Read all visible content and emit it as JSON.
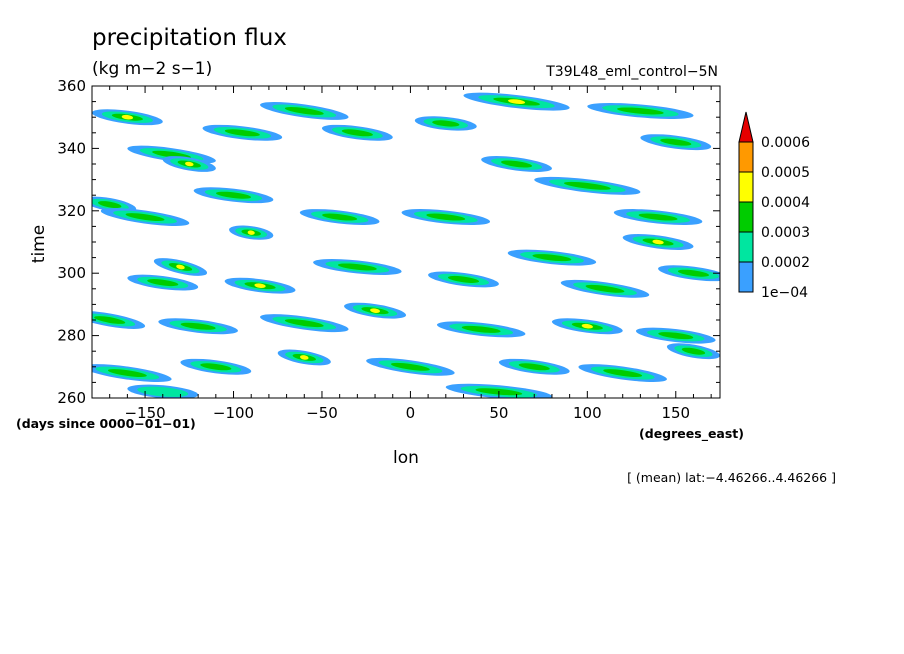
{
  "chart_data": {
    "type": "heatmap",
    "title": "precipitation flux",
    "units": "(kg m−2 s−1)",
    "experiment": "T39L48_eml_control−5N",
    "xlabel": "lon",
    "x_units": "(degrees_east)",
    "ylabel": "time",
    "y_units": "(days since 0000−01−01)",
    "note": "[ (mean) lat:−4.46266..4.46266 ]",
    "xlim": [
      -180,
      175
    ],
    "ylim": [
      260,
      360
    ],
    "x_ticks": [
      -150,
      -100,
      -50,
      0,
      50,
      100,
      150
    ],
    "x_tick_labels": [
      "−150",
      "−100",
      "−50",
      "0",
      "50",
      "100",
      "150"
    ],
    "y_ticks": [
      260,
      280,
      300,
      320,
      340,
      360
    ],
    "y_tick_labels": [
      "260",
      "280",
      "300",
      "320",
      "340",
      "360"
    ],
    "colorbar": {
      "levels": [
        0.0001,
        0.0002,
        0.0003,
        0.0004,
        0.0005,
        0.0006
      ],
      "level_labels": [
        "1e−04",
        "0.0002",
        "0.0003",
        "0.0004",
        "0.0005",
        "0.0006"
      ],
      "colors": [
        "#3aa0ff",
        "#00e6a0",
        "#00cc00",
        "#ffff00",
        "#ff9900",
        "#e60000"
      ]
    },
    "bands_description": "eastward-propagating streaks running from lower-left to upper-right",
    "bands": [
      {
        "lon": -160,
        "t": 350,
        "dlon": 40,
        "dt": -3,
        "peak": 3
      },
      {
        "lon": -135,
        "t": 338,
        "dlon": 50,
        "dt": -4,
        "peak": 2
      },
      {
        "lon": -125,
        "t": 335,
        "dlon": 30,
        "dt": -3,
        "peak": 4
      },
      {
        "lon": -95,
        "t": 345,
        "dlon": 45,
        "dt": -3,
        "peak": 2
      },
      {
        "lon": -60,
        "t": 352,
        "dlon": 50,
        "dt": -4,
        "peak": 2
      },
      {
        "lon": -30,
        "t": 345,
        "dlon": 40,
        "dt": -3,
        "peak": 2
      },
      {
        "lon": 20,
        "t": 348,
        "dlon": 35,
        "dt": -2,
        "peak": 2
      },
      {
        "lon": 60,
        "t": 355,
        "dlon": 60,
        "dt": -4,
        "peak": 3
      },
      {
        "lon": 130,
        "t": 352,
        "dlon": 60,
        "dt": -3,
        "peak": 2
      },
      {
        "lon": 150,
        "t": 342,
        "dlon": 40,
        "dt": -3,
        "peak": 2
      },
      {
        "lon": -170,
        "t": 322,
        "dlon": 30,
        "dt": -3,
        "peak": 2
      },
      {
        "lon": -150,
        "t": 318,
        "dlon": 50,
        "dt": -4,
        "peak": 2
      },
      {
        "lon": -100,
        "t": 325,
        "dlon": 45,
        "dt": -3,
        "peak": 2
      },
      {
        "lon": -90,
        "t": 313,
        "dlon": 25,
        "dt": -2,
        "peak": 4
      },
      {
        "lon": -40,
        "t": 318,
        "dlon": 45,
        "dt": -3,
        "peak": 2
      },
      {
        "lon": 20,
        "t": 318,
        "dlon": 50,
        "dt": -3,
        "peak": 2
      },
      {
        "lon": 60,
        "t": 335,
        "dlon": 40,
        "dt": -3,
        "peak": 2
      },
      {
        "lon": 100,
        "t": 328,
        "dlon": 60,
        "dt": -4,
        "peak": 2
      },
      {
        "lon": 140,
        "t": 318,
        "dlon": 50,
        "dt": -3,
        "peak": 2
      },
      {
        "lon": 140,
        "t": 310,
        "dlon": 40,
        "dt": -3,
        "peak": 3
      },
      {
        "lon": -130,
        "t": 302,
        "dlon": 30,
        "dt": -4,
        "peak": 3
      },
      {
        "lon": -140,
        "t": 297,
        "dlon": 40,
        "dt": -3,
        "peak": 2
      },
      {
        "lon": -85,
        "t": 296,
        "dlon": 40,
        "dt": -3,
        "peak": 3
      },
      {
        "lon": -30,
        "t": 302,
        "dlon": 50,
        "dt": -3,
        "peak": 2
      },
      {
        "lon": 30,
        "t": 298,
        "dlon": 40,
        "dt": -3,
        "peak": 2
      },
      {
        "lon": 80,
        "t": 305,
        "dlon": 50,
        "dt": -3,
        "peak": 2
      },
      {
        "lon": 110,
        "t": 295,
        "dlon": 50,
        "dt": -4,
        "peak": 2
      },
      {
        "lon": 160,
        "t": 300,
        "dlon": 40,
        "dt": -3,
        "peak": 2
      },
      {
        "lon": -170,
        "t": 285,
        "dlon": 40,
        "dt": -4,
        "peak": 2
      },
      {
        "lon": -120,
        "t": 283,
        "dlon": 45,
        "dt": -3,
        "peak": 2
      },
      {
        "lon": -60,
        "t": 284,
        "dlon": 50,
        "dt": -4,
        "peak": 2
      },
      {
        "lon": -20,
        "t": 288,
        "dlon": 35,
        "dt": -3,
        "peak": 3
      },
      {
        "lon": 40,
        "t": 282,
        "dlon": 50,
        "dt": -3,
        "peak": 2
      },
      {
        "lon": 100,
        "t": 283,
        "dlon": 40,
        "dt": -3,
        "peak": 3
      },
      {
        "lon": 150,
        "t": 280,
        "dlon": 45,
        "dt": -3,
        "peak": 2
      },
      {
        "lon": -160,
        "t": 268,
        "dlon": 50,
        "dt": -4,
        "peak": 2
      },
      {
        "lon": -110,
        "t": 270,
        "dlon": 40,
        "dt": -3,
        "peak": 2
      },
      {
        "lon": -60,
        "t": 273,
        "dlon": 30,
        "dt": -3,
        "peak": 3
      },
      {
        "lon": 0,
        "t": 270,
        "dlon": 50,
        "dt": -4,
        "peak": 2
      },
      {
        "lon": 70,
        "t": 270,
        "dlon": 40,
        "dt": -3,
        "peak": 2
      },
      {
        "lon": 120,
        "t": 268,
        "dlon": 50,
        "dt": -4,
        "peak": 2
      },
      {
        "lon": 160,
        "t": 275,
        "dlon": 30,
        "dt": -3,
        "peak": 2
      },
      {
        "lon": -140,
        "t": 262,
        "dlon": 40,
        "dt": -2,
        "peak": 1
      },
      {
        "lon": 50,
        "t": 262,
        "dlon": 60,
        "dt": -3,
        "peak": 2
      }
    ]
  }
}
